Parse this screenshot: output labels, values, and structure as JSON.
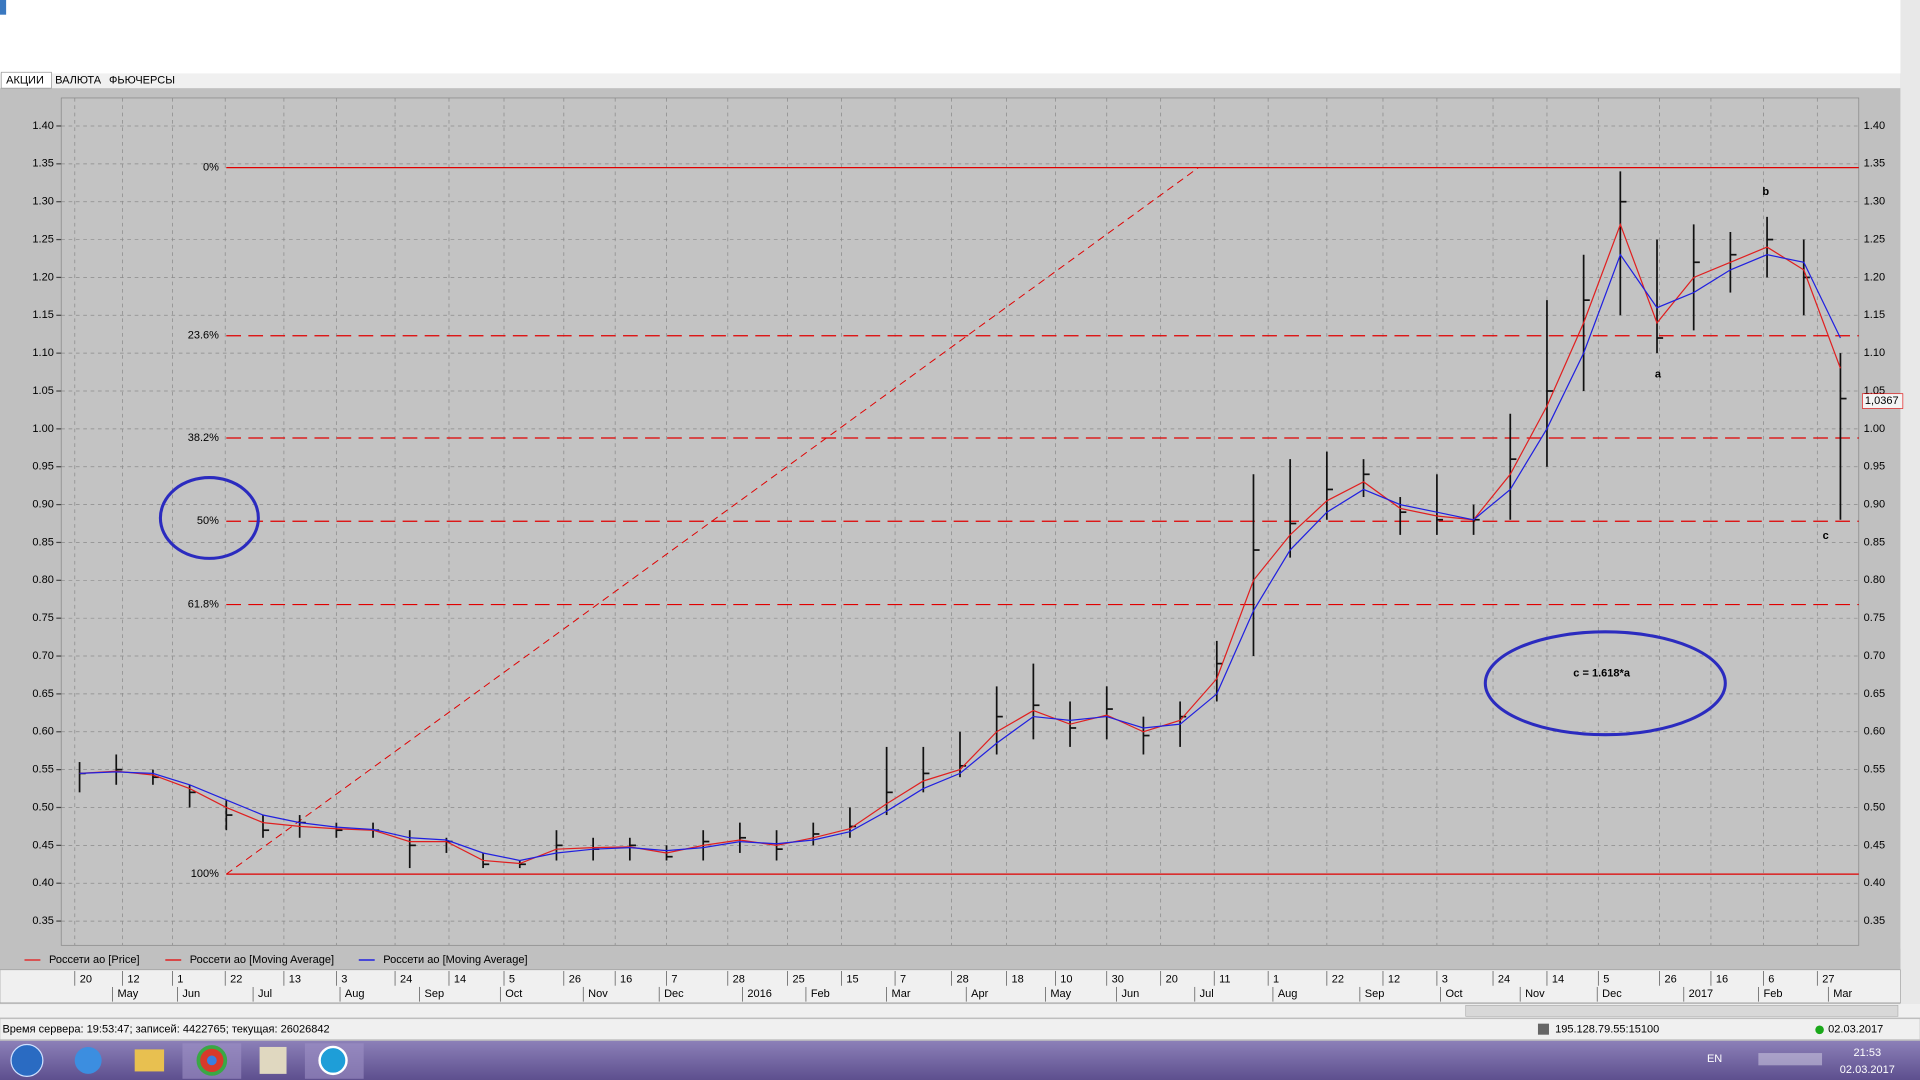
{
  "window": {
    "tabs": [
      "АКЦИИ",
      "ВАЛЮТА",
      "ФЬЮЧЕРСЫ"
    ]
  },
  "chart_data": {
    "type": "candlestick",
    "xlim": [
      0,
      49
    ],
    "ylim": [
      0.318,
      1.437
    ],
    "yticks": [
      0.35,
      {
        "value": 0.4,
        "label": "0.40"
      },
      0.45,
      {
        "value": 0.5,
        "label": "0.50"
      },
      0.55,
      {
        "value": 0.6,
        "label": "0.60"
      },
      0.65,
      {
        "value": 0.7,
        "label": "0.70"
      },
      0.75,
      {
        "value": 0.8,
        "label": "0.80"
      },
      0.85,
      {
        "value": 0.9,
        "label": "0.90"
      },
      0.95,
      {
        "value": 1,
        "label": "1.00"
      },
      1.05,
      {
        "value": 1.1,
        "label": "1.10"
      },
      1.15,
      {
        "value": 1.2,
        "label": "1.20"
      },
      1.25,
      {
        "value": 1.3,
        "label": "1.30"
      },
      1.35,
      {
        "value": 1.4,
        "label": "1.40"
      }
    ],
    "xticks": [
      {
        "value": 0.37,
        "label": "20"
      },
      {
        "value": 1.67,
        "label": "12"
      },
      {
        "value": 3.03,
        "label": "1"
      },
      {
        "value": 4.47,
        "label": "22"
      },
      {
        "value": 6.07,
        "label": "13"
      },
      {
        "value": 7.5,
        "label": "3"
      },
      {
        "value": 9.1,
        "label": "24"
      },
      {
        "value": 10.57,
        "label": "14"
      },
      {
        "value": 12.07,
        "label": "5"
      },
      {
        "value": 13.7,
        "label": "26"
      },
      {
        "value": 15.1,
        "label": "16"
      },
      {
        "value": 16.5,
        "label": "7"
      },
      {
        "value": 18.17,
        "label": "28"
      },
      {
        "value": 19.8,
        "label": "25"
      },
      {
        "value": 21.27,
        "label": "15"
      },
      {
        "value": 22.73,
        "label": "7"
      },
      {
        "value": 24.27,
        "label": "28"
      },
      {
        "value": 25.77,
        "label": "18"
      },
      {
        "value": 27.1,
        "label": "10"
      },
      {
        "value": 28.5,
        "label": "30"
      },
      {
        "value": 29.97,
        "label": "20"
      },
      {
        "value": 31.43,
        "label": "11"
      },
      {
        "value": 32.9,
        "label": "1"
      },
      {
        "value": 34.5,
        "label": "22"
      },
      {
        "value": 36.03,
        "label": "12"
      },
      {
        "value": 37.5,
        "label": "3"
      },
      {
        "value": 39.03,
        "label": "24"
      },
      {
        "value": 40.5,
        "label": "14"
      },
      {
        "value": 41.9,
        "label": "5"
      },
      {
        "value": 43.57,
        "label": "26"
      },
      {
        "value": 44.97,
        "label": "16"
      },
      {
        "value": 46.4,
        "label": "6"
      },
      {
        "value": 47.87,
        "label": "27"
      }
    ],
    "xticks_months": [
      {
        "value": 1.4,
        "label": "May"
      },
      {
        "value": 3.17,
        "label": "Jun"
      },
      {
        "value": 5.23,
        "label": "Jul"
      },
      {
        "value": 7.6,
        "label": "Aug"
      },
      {
        "value": 9.77,
        "label": "Sep"
      },
      {
        "value": 11.97,
        "label": "Oct"
      },
      {
        "value": 14.23,
        "label": "Nov"
      },
      {
        "value": 16.3,
        "label": "Dec"
      },
      {
        "value": 18.57,
        "label": "2016"
      },
      {
        "value": 20.3,
        "label": "Feb"
      },
      {
        "value": 22.5,
        "label": "Mar"
      },
      {
        "value": 24.67,
        "label": "Apr"
      },
      {
        "value": 26.83,
        "label": "May"
      },
      {
        "value": 28.77,
        "label": "Jun"
      },
      {
        "value": 30.9,
        "label": "Jul"
      },
      {
        "value": 33.03,
        "label": "Aug"
      },
      {
        "value": 35.4,
        "label": "Sep"
      },
      {
        "value": 37.6,
        "label": "Oct"
      },
      {
        "value": 39.77,
        "label": "Nov"
      },
      {
        "value": 41.87,
        "label": "Dec"
      },
      {
        "value": 44.23,
        "label": "2017"
      },
      {
        "value": 46.27,
        "label": "Feb"
      },
      {
        "value": 48.17,
        "label": "Mar"
      }
    ],
    "grid": true,
    "price": {
      "name": "Россети ао [Price]",
      "color": "#e03030",
      "high": [
        0.56,
        0.57,
        0.55,
        0.53,
        0.51,
        0.49,
        0.49,
        0.48,
        0.48,
        0.47,
        0.46,
        0.44,
        0.43,
        0.47,
        0.46,
        0.46,
        0.45,
        0.47,
        0.48,
        0.47,
        0.48,
        0.5,
        0.58,
        0.58,
        0.6,
        0.66,
        0.69,
        0.64,
        0.66,
        0.62,
        0.64,
        0.72,
        0.94,
        0.96,
        0.97,
        0.96,
        0.91,
        0.94,
        0.9,
        1.02,
        1.17,
        1.23,
        1.34,
        1.25,
        1.27,
        1.26,
        1.28,
        1.25,
        1.1
      ],
      "low": [
        0.52,
        0.53,
        0.53,
        0.5,
        0.47,
        0.46,
        0.46,
        0.46,
        0.46,
        0.42,
        0.44,
        0.42,
        0.42,
        0.43,
        0.43,
        0.43,
        0.43,
        0.43,
        0.44,
        0.43,
        0.45,
        0.46,
        0.49,
        0.52,
        0.54,
        0.57,
        0.59,
        0.58,
        0.59,
        0.57,
        0.58,
        0.64,
        0.7,
        0.83,
        0.88,
        0.91,
        0.86,
        0.86,
        0.86,
        0.88,
        0.95,
        1.05,
        1.15,
        1.1,
        1.13,
        1.18,
        1.2,
        1.15,
        0.88
      ],
      "close": [
        0.545,
        0.55,
        0.54,
        0.52,
        0.49,
        0.47,
        0.48,
        0.47,
        0.47,
        0.45,
        0.455,
        0.425,
        0.425,
        0.45,
        0.445,
        0.45,
        0.435,
        0.455,
        0.46,
        0.445,
        0.465,
        0.475,
        0.52,
        0.545,
        0.555,
        0.62,
        0.635,
        0.605,
        0.63,
        0.595,
        0.62,
        0.69,
        0.84,
        0.875,
        0.92,
        0.94,
        0.89,
        0.88,
        0.88,
        0.96,
        1.05,
        1.17,
        1.3,
        1.12,
        1.22,
        1.23,
        1.25,
        1.2,
        1.04
      ]
    },
    "series": [
      {
        "name": "Россети ао [Moving Average]",
        "color": "#e02020",
        "values": [
          0.545,
          0.548,
          0.543,
          0.525,
          0.5,
          0.48,
          0.475,
          0.472,
          0.47,
          0.455,
          0.455,
          0.43,
          0.426,
          0.445,
          0.447,
          0.448,
          0.44,
          0.45,
          0.457,
          0.45,
          0.46,
          0.472,
          0.505,
          0.535,
          0.55,
          0.6,
          0.628,
          0.61,
          0.622,
          0.6,
          0.615,
          0.67,
          0.8,
          0.86,
          0.905,
          0.93,
          0.895,
          0.885,
          0.88,
          0.94,
          1.03,
          1.14,
          1.27,
          1.14,
          1.2,
          1.22,
          1.24,
          1.21,
          1.08
        ]
      },
      {
        "name": "Россети ао [Moving Average]",
        "color": "#2020e0",
        "values": [
          0.545,
          0.547,
          0.545,
          0.53,
          0.51,
          0.49,
          0.48,
          0.474,
          0.471,
          0.46,
          0.457,
          0.44,
          0.43,
          0.44,
          0.445,
          0.447,
          0.443,
          0.447,
          0.455,
          0.452,
          0.457,
          0.468,
          0.495,
          0.525,
          0.545,
          0.585,
          0.62,
          0.615,
          0.62,
          0.605,
          0.61,
          0.65,
          0.76,
          0.84,
          0.89,
          0.92,
          0.9,
          0.89,
          0.88,
          0.92,
          1.0,
          1.1,
          1.23,
          1.16,
          1.18,
          1.21,
          1.23,
          1.22,
          1.12
        ]
      }
    ],
    "fibonacci": {
      "color": "#e00000",
      "levels": [
        {
          "label": "0%",
          "value": 1.345
        },
        {
          "label": "23.6%",
          "value": 1.123
        },
        {
          "label": "38.2%",
          "value": 0.988
        },
        {
          "label": "50%",
          "value": 0.878
        },
        {
          "label": "61.8%",
          "value": 0.768
        },
        {
          "label": "100%",
          "value": 0.412
        }
      ]
    },
    "trendline": {
      "x": [
        4.5,
        31
      ],
      "y": [
        0.412,
        1.345
      ]
    },
    "last_price": {
      "value": 1.0367,
      "label": "1,0367"
    },
    "annotations": [
      "a",
      "b",
      "c",
      "c = 1.618*a"
    ]
  },
  "status_bar": {
    "server": "Время сервера: 19:53:47; записей: 4422765; текущая: 26026842",
    "address": "195.128.79.55:15100",
    "date": "02.03.2017"
  },
  "taskbar": {
    "lang": "EN",
    "time": "21:53",
    "date": "02.03.2017"
  }
}
